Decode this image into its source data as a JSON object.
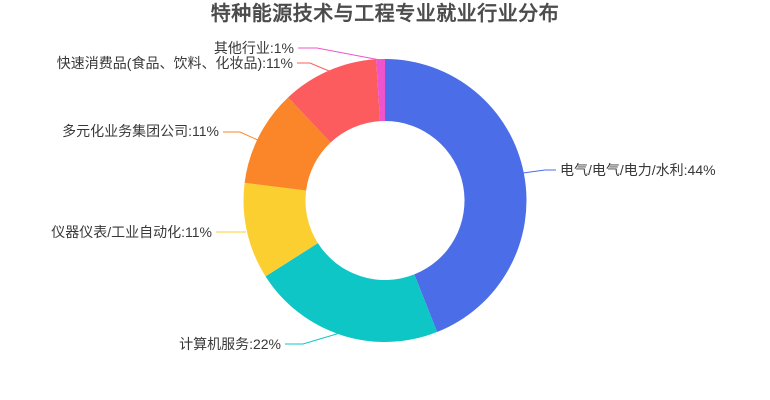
{
  "chart_data": {
    "type": "pie",
    "variant": "donut",
    "title": "特种能源技术与工程专业就业行业分布",
    "label_format": "{name}:{value}%",
    "unit": "%",
    "total": 100,
    "start_angle": "top",
    "direction": "clockwise",
    "inner_radius_ratio": 0.56,
    "legend_position": "none",
    "grid": false,
    "background": "#ffffff",
    "title_color": "#4c4c4c",
    "label_text_color": "#383838",
    "segments": [
      {
        "name": "电气/电气/电力/水利",
        "value": 44,
        "color": "#4b6ee8",
        "label": "电气/电气/电力/水利:44%",
        "label_side": "right"
      },
      {
        "name": "计算机服务",
        "value": 22,
        "color": "#0fc6c6",
        "label": "计算机服务:22%",
        "label_side": "left"
      },
      {
        "name": "仪器仪表/工业自动化",
        "value": 11,
        "color": "#fccf31",
        "label": "仪器仪表/工业自动化:11%",
        "label_side": "left"
      },
      {
        "name": "多元化业务集团公司",
        "value": 11,
        "color": "#fb8529",
        "label": "多元化业务集团公司:11%",
        "label_side": "left"
      },
      {
        "name": "快速消费品(食品、饮料、化妆品)",
        "value": 11,
        "color": "#fc5c5d",
        "label": "快速消费品(食品、饮料、化妆品):11%",
        "label_side": "left"
      },
      {
        "name": "其他行业",
        "value": 1,
        "color": "#ee55cc",
        "label": "其他行业:1%",
        "label_side": "left"
      }
    ]
  }
}
